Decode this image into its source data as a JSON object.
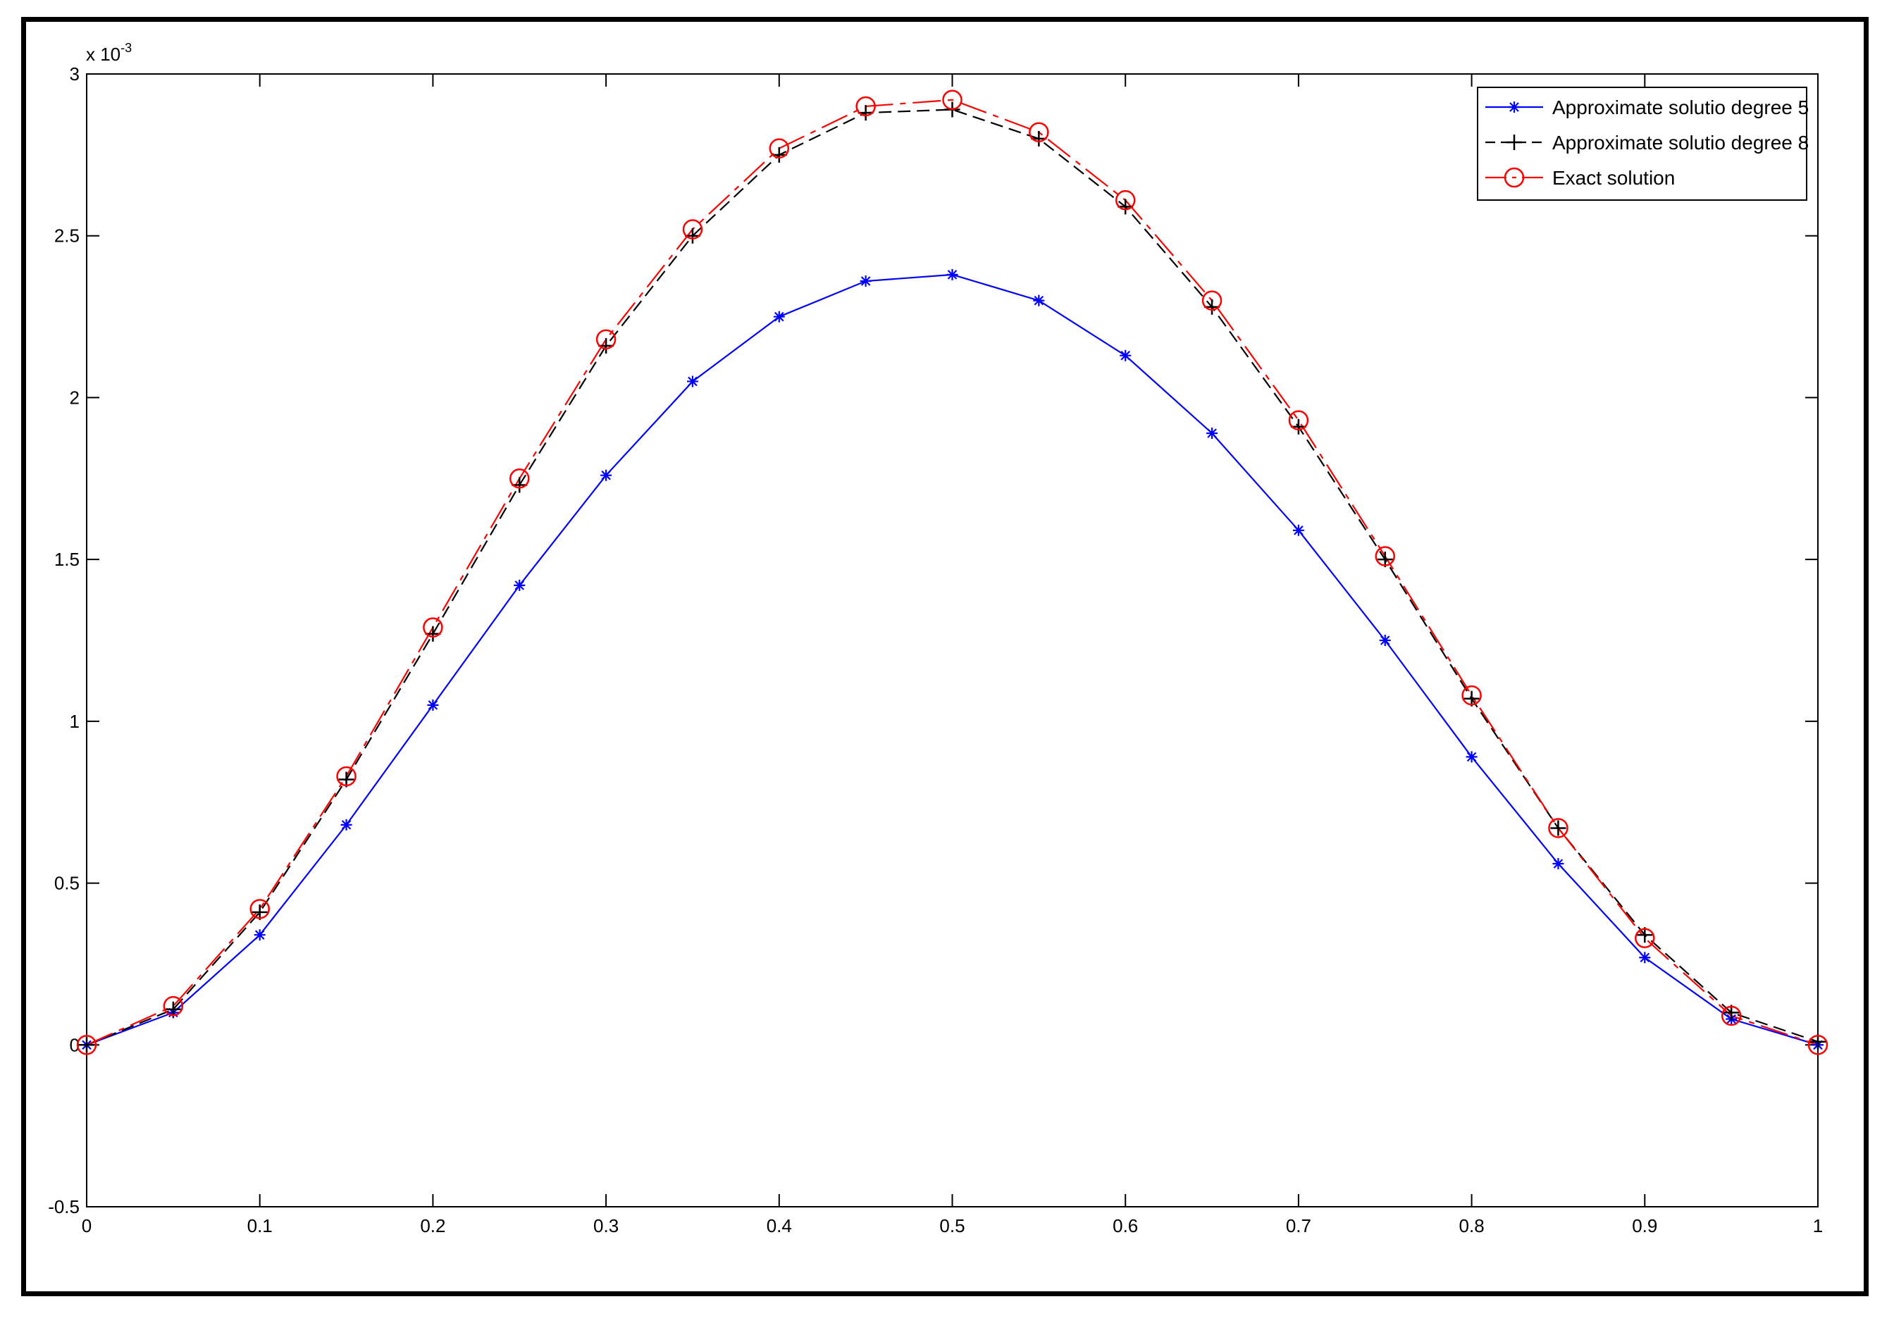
{
  "chart_data": {
    "type": "line",
    "title": "",
    "xlabel": "",
    "ylabel": "",
    "y_exponent": {
      "base": "x 10",
      "power": "-3"
    },
    "xlim": [
      0,
      1
    ],
    "ylim": [
      -0.5,
      3
    ],
    "x_ticks": [
      "0",
      "0.1",
      "0.2",
      "0.3",
      "0.4",
      "0.5",
      "0.6",
      "0.7",
      "0.8",
      "0.9",
      "1"
    ],
    "y_ticks": [
      "-0.5",
      "0",
      "0.5",
      "1",
      "1.5",
      "2",
      "2.5",
      "3"
    ],
    "grid": false,
    "legend_position": "top-right",
    "x": [
      0,
      0.05,
      0.1,
      0.15,
      0.2,
      0.25,
      0.3,
      0.35,
      0.4,
      0.45,
      0.5,
      0.55,
      0.6,
      0.65,
      0.7,
      0.75,
      0.8,
      0.85,
      0.9,
      0.95,
      1
    ],
    "series": [
      {
        "name": "Approximate solutio degree 5",
        "color": "#0000ff",
        "line_style": "solid",
        "marker": "asterisk",
        "values": [
          0,
          0.1,
          0.34,
          0.68,
          1.05,
          1.42,
          1.76,
          2.05,
          2.25,
          2.36,
          2.38,
          2.3,
          2.13,
          1.89,
          1.59,
          1.25,
          0.89,
          0.56,
          0.27,
          0.08,
          0
        ]
      },
      {
        "name": "Approximate solutio degree 8",
        "color": "#000000",
        "line_style": "dashed",
        "marker": "plus",
        "values": [
          0,
          0.11,
          0.41,
          0.82,
          1.27,
          1.73,
          2.16,
          2.5,
          2.75,
          2.88,
          2.89,
          2.8,
          2.59,
          2.28,
          1.91,
          1.5,
          1.07,
          0.67,
          0.34,
          0.1,
          0.01
        ]
      },
      {
        "name": "Exact solution",
        "color": "#ff0000",
        "line_style": "dashdot",
        "marker": "circle",
        "values": [
          0,
          0.12,
          0.42,
          0.83,
          1.29,
          1.75,
          2.18,
          2.52,
          2.77,
          2.9,
          2.92,
          2.82,
          2.61,
          2.3,
          1.93,
          1.51,
          1.08,
          0.67,
          0.33,
          0.09,
          0
        ]
      }
    ]
  }
}
